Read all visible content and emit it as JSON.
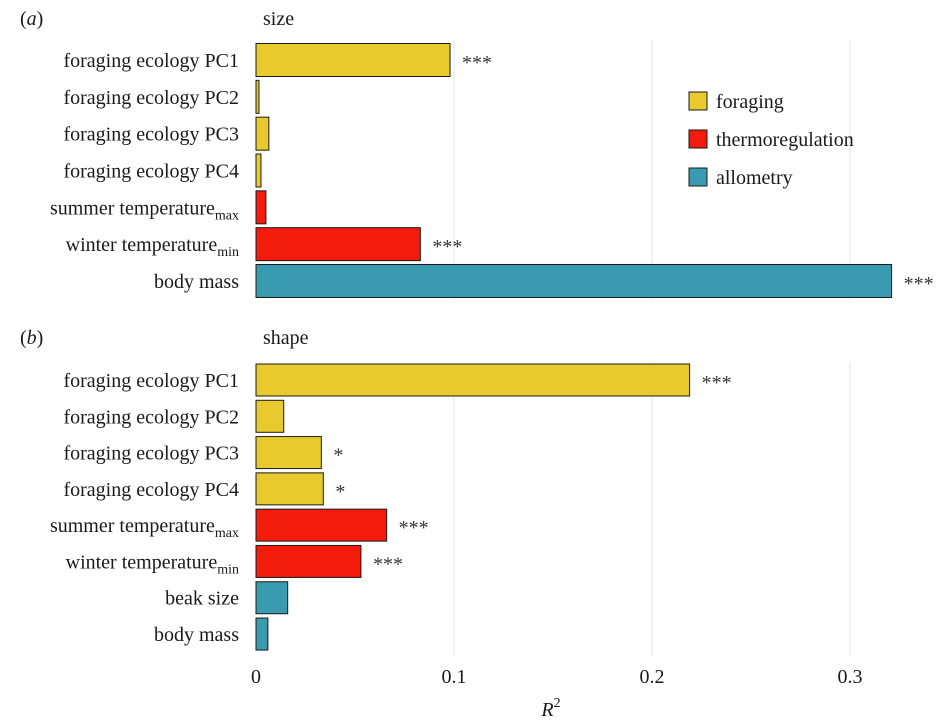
{
  "chart_data": {
    "type": "bar",
    "orientation": "horizontal",
    "xlabel": "R",
    "xlabel_sup": "2",
    "xlim": [
      0,
      0.34
    ],
    "xticks": [
      0,
      0.1,
      0.2,
      0.3
    ],
    "xtick_labels": [
      "0",
      "0.1",
      "0.2",
      "0.3"
    ],
    "grid": "vertical",
    "legend_position": "right, inside top panel",
    "legend": [
      {
        "label": "foraging",
        "color": "#E8CA2E"
      },
      {
        "label": "thermoregulation",
        "color": "#F21B0C"
      },
      {
        "label": "allometry",
        "color": "#3A9AB0"
      }
    ],
    "panels": [
      {
        "tag_open": "(",
        "tag_letter": "a",
        "tag_close": ")",
        "title": "size",
        "bars": [
          {
            "label": "foraging ecology PC1",
            "value": 0.098,
            "group": "foraging",
            "sig": "***"
          },
          {
            "label": "foraging ecology PC2",
            "value": 0.0015,
            "group": "foraging",
            "sig": ""
          },
          {
            "label": "foraging ecology PC3",
            "value": 0.0065,
            "group": "foraging",
            "sig": ""
          },
          {
            "label": "foraging ecology PC4",
            "value": 0.0025,
            "group": "foraging",
            "sig": ""
          },
          {
            "label": "summer temperature",
            "sub": "max",
            "value": 0.005,
            "group": "thermoregulation",
            "sig": ""
          },
          {
            "label": "winter temperature",
            "sub": "min",
            "value": 0.083,
            "group": "thermoregulation",
            "sig": "***"
          },
          {
            "label": "body mass",
            "value": 0.321,
            "group": "allometry",
            "sig": "***"
          }
        ]
      },
      {
        "tag_open": "(",
        "tag_letter": "b",
        "tag_close": ")",
        "title": "shape",
        "bars": [
          {
            "label": "foraging ecology PC1",
            "value": 0.219,
            "group": "foraging",
            "sig": "***"
          },
          {
            "label": "foraging ecology PC2",
            "value": 0.014,
            "group": "foraging",
            "sig": ""
          },
          {
            "label": "foraging ecology PC3",
            "value": 0.033,
            "group": "foraging",
            "sig": "*"
          },
          {
            "label": "foraging ecology PC4",
            "value": 0.034,
            "group": "foraging",
            "sig": "*"
          },
          {
            "label": "summer temperature",
            "sub": "max",
            "value": 0.066,
            "group": "thermoregulation",
            "sig": "***"
          },
          {
            "label": "winter temperature",
            "sub": "min",
            "value": 0.053,
            "group": "thermoregulation",
            "sig": "***"
          },
          {
            "label": "beak size",
            "value": 0.016,
            "group": "allometry",
            "sig": ""
          },
          {
            "label": "body mass",
            "value": 0.006,
            "group": "allometry",
            "sig": ""
          }
        ]
      }
    ]
  }
}
